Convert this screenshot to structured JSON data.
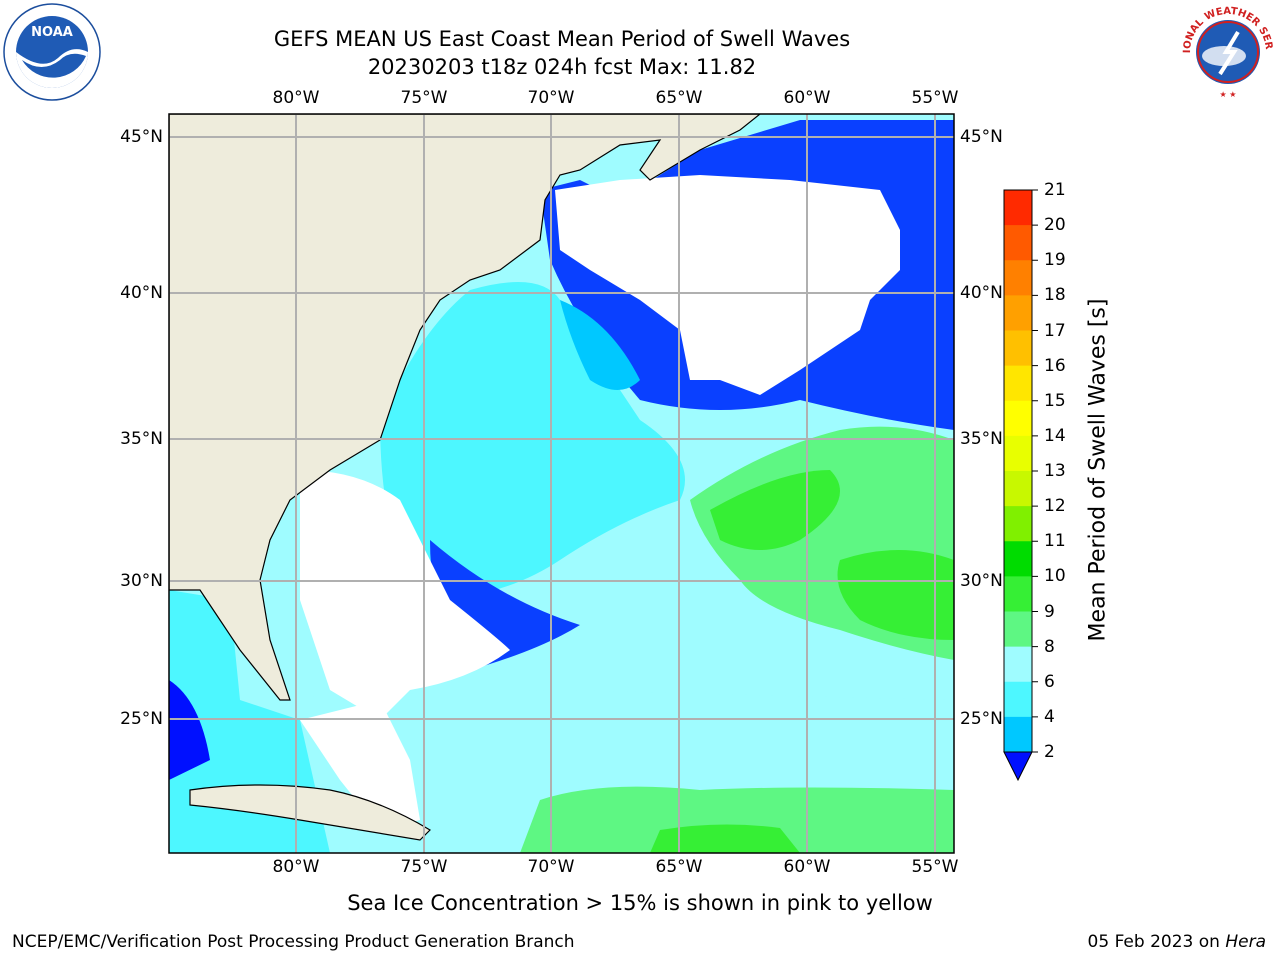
{
  "title": {
    "line1": "GEFS MEAN US East Coast Mean Period of Swell Waves",
    "line2": "20230203 t18z 024h fcst   Max: 11.82"
  },
  "logos": {
    "left": {
      "name": "NOARA",
      "ring_text": "NATIONAL OCEANIC AND ATMOSPHERIC ADMINISTRATION · U.S. DEPARTMENT OF COMMERCE",
      "icon": "noaa-logo"
    },
    "right": {
      "ring_text": "NATIONAL WEATHER SERVICE",
      "icon": "nws-logo"
    }
  },
  "map": {
    "lon_ticks": [
      "80°W",
      "75°W",
      "70°W",
      "65°W",
      "60°W",
      "55°W"
    ],
    "lat_ticks": [
      "45°N",
      "40°N",
      "35°N",
      "30°N",
      "25°N"
    ],
    "lon_range": [
      -85,
      -54.4
    ],
    "lat_range": [
      20.1,
      45.8
    ],
    "colors": {
      "land": "#eeecdc",
      "grid": "#b0b0b0",
      "coast": "#000000"
    }
  },
  "colorbar": {
    "label": "Mean Period of Swell Waves [s]",
    "ticks": [
      "21",
      "20",
      "19",
      "18",
      "17",
      "16",
      "15",
      "14",
      "13",
      "12",
      "11",
      "10",
      "9",
      "8",
      "6",
      "4",
      "2"
    ],
    "colors": [
      "#0a40ff",
      "#00c8ff",
      "#4df7ff",
      "#9ffcff",
      "#5ef783",
      "#36ef35",
      "#00dc00",
      "#80f000",
      "#c8f800",
      "#e8ff00",
      "#ffff00",
      "#ffe600",
      "#ffc000",
      "#ffa000",
      "#ff8000",
      "#ff5a00",
      "#ff2a00",
      "#ff0000"
    ],
    "underflow_color": "#0010ff"
  },
  "chart_data": {
    "type": "heatmap",
    "title": "GEFS MEAN US East Coast Mean Period of Swell Waves",
    "units": "s",
    "max": 11.82,
    "levels": [
      2,
      4,
      6,
      8,
      9,
      10,
      11,
      12,
      13,
      14,
      15,
      16,
      17,
      18,
      19,
      20,
      21
    ]
  },
  "note": "Sea Ice Concentration > 15% is shown in pink to yellow",
  "footer": {
    "left": "NCEP/EMC/Verification Post Processing Product Generation Branch",
    "date": "05 Feb 2023 on ",
    "machine": "Hera"
  }
}
